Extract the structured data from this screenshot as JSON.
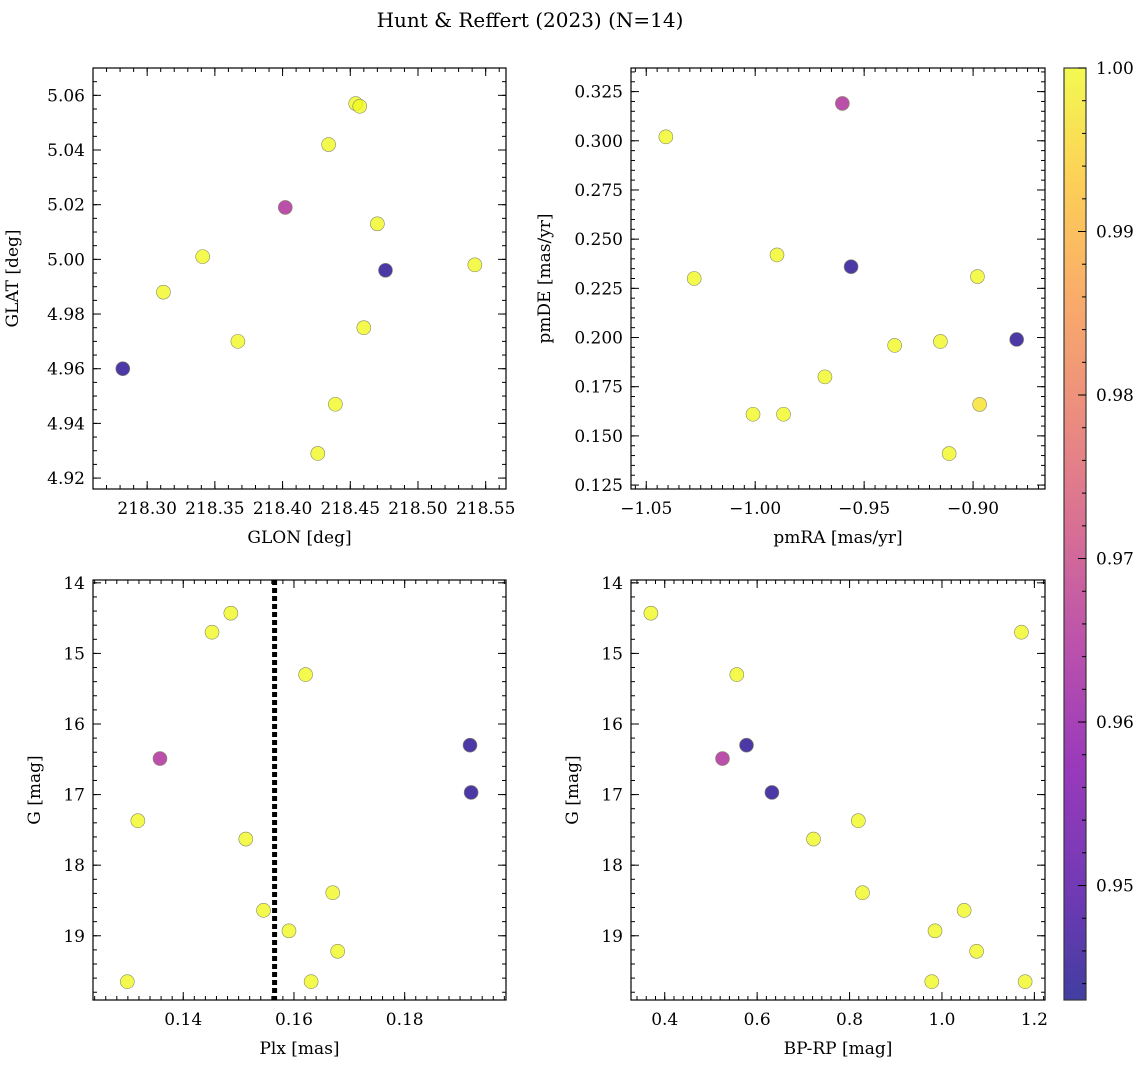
{
  "figure": {
    "suptitle": "Hunt & Reffert (2023) (N=14)"
  },
  "colorbar": {
    "colormap": "plasma",
    "range": [
      0.943,
      1.0
    ],
    "ticks": [
      0.95,
      0.96,
      0.97,
      0.98,
      0.99,
      1.0
    ],
    "tick_labels": [
      "0.95",
      "0.96",
      "0.97",
      "0.98",
      "0.99",
      "1.00"
    ]
  },
  "chart_data": [
    {
      "id": "glon-glat",
      "type": "scatter",
      "xlabel": "GLON [deg]",
      "ylabel": "GLAT [deg]",
      "xlim": [
        218.26,
        218.565
      ],
      "ylim": [
        4.916,
        5.07
      ],
      "xticks": [
        218.3,
        218.35,
        218.4,
        218.45,
        218.5,
        218.55
      ],
      "xtick_labels": [
        "218.30",
        "218.35",
        "218.40",
        "218.45",
        "218.50",
        "218.55"
      ],
      "yticks": [
        4.92,
        4.94,
        4.96,
        4.98,
        5.0,
        5.02,
        5.04,
        5.06
      ],
      "ytick_labels": [
        "4.92",
        "4.94",
        "4.96",
        "4.98",
        "5.00",
        "5.02",
        "5.04",
        "5.06"
      ],
      "points": [
        {
          "x": 218.282,
          "y": 4.96,
          "c": 0.945
        },
        {
          "x": 218.312,
          "y": 4.988,
          "c": 1.0
        },
        {
          "x": 218.341,
          "y": 5.001,
          "c": 1.0
        },
        {
          "x": 218.367,
          "y": 4.97,
          "c": 1.0
        },
        {
          "x": 218.402,
          "y": 5.019,
          "c": 0.965
        },
        {
          "x": 218.426,
          "y": 4.929,
          "c": 1.0
        },
        {
          "x": 218.434,
          "y": 5.042,
          "c": 1.0
        },
        {
          "x": 218.439,
          "y": 4.947,
          "c": 1.0
        },
        {
          "x": 218.454,
          "y": 5.057,
          "c": 1.0
        },
        {
          "x": 218.457,
          "y": 5.056,
          "c": 1.0
        },
        {
          "x": 218.46,
          "y": 4.975,
          "c": 1.0
        },
        {
          "x": 218.47,
          "y": 5.013,
          "c": 1.0
        },
        {
          "x": 218.476,
          "y": 4.996,
          "c": 0.945
        },
        {
          "x": 218.542,
          "y": 4.998,
          "c": 1.0
        }
      ]
    },
    {
      "id": "pmra-pmde",
      "type": "scatter",
      "xlabel": "pmRA [mas/yr]",
      "ylabel": "pmDE [mas/yr]",
      "xlim": [
        -1.057,
        -0.867
      ],
      "ylim": [
        0.123,
        0.337
      ],
      "xticks": [
        -1.05,
        -1.0,
        -0.95,
        -0.9
      ],
      "xtick_labels": [
        "−1.05",
        "−1.00",
        "−0.95",
        "−0.90"
      ],
      "yticks": [
        0.125,
        0.15,
        0.175,
        0.2,
        0.225,
        0.25,
        0.275,
        0.3,
        0.325
      ],
      "ytick_labels": [
        "0.125",
        "0.150",
        "0.175",
        "0.200",
        "0.225",
        "0.250",
        "0.275",
        "0.300",
        "0.325"
      ],
      "points": [
        {
          "x": -1.041,
          "y": 0.302,
          "c": 1.0
        },
        {
          "x": -1.028,
          "y": 0.23,
          "c": 1.0
        },
        {
          "x": -1.001,
          "y": 0.161,
          "c": 1.0
        },
        {
          "x": -0.99,
          "y": 0.242,
          "c": 1.0
        },
        {
          "x": -0.987,
          "y": 0.161,
          "c": 1.0
        },
        {
          "x": -0.968,
          "y": 0.18,
          "c": 1.0
        },
        {
          "x": -0.96,
          "y": 0.319,
          "c": 0.965
        },
        {
          "x": -0.956,
          "y": 0.236,
          "c": 0.945
        },
        {
          "x": -0.936,
          "y": 0.196,
          "c": 1.0
        },
        {
          "x": -0.915,
          "y": 0.198,
          "c": 1.0
        },
        {
          "x": -0.911,
          "y": 0.141,
          "c": 1.0
        },
        {
          "x": -0.898,
          "y": 0.231,
          "c": 1.0
        },
        {
          "x": -0.897,
          "y": 0.166,
          "c": 0.997
        },
        {
          "x": -0.88,
          "y": 0.199,
          "c": 0.945
        }
      ]
    },
    {
      "id": "plx-g",
      "type": "scatter",
      "xlabel": "Plx [mas]",
      "ylabel": "G [mag]",
      "xlim": [
        0.1237,
        0.1983
      ],
      "ylim": [
        19.91,
        13.96
      ],
      "y_inverted": true,
      "vline": 0.1565,
      "xticks": [
        0.14,
        0.16,
        0.18
      ],
      "xtick_labels": [
        "0.14",
        "0.16",
        "0.18"
      ],
      "yticks": [
        14,
        15,
        16,
        17,
        18,
        19
      ],
      "ytick_labels": [
        "14",
        "15",
        "16",
        "17",
        "18",
        "19"
      ],
      "points": [
        {
          "x": 0.1299,
          "y": 19.65,
          "c": 1.0
        },
        {
          "x": 0.1318,
          "y": 17.37,
          "c": 1.0
        },
        {
          "x": 0.1358,
          "y": 16.49,
          "c": 0.965
        },
        {
          "x": 0.1452,
          "y": 14.7,
          "c": 1.0
        },
        {
          "x": 0.1486,
          "y": 14.43,
          "c": 1.0
        },
        {
          "x": 0.1513,
          "y": 17.63,
          "c": 1.0
        },
        {
          "x": 0.1545,
          "y": 18.64,
          "c": 1.0
        },
        {
          "x": 0.1591,
          "y": 18.93,
          "c": 1.0
        },
        {
          "x": 0.1621,
          "y": 15.3,
          "c": 1.0
        },
        {
          "x": 0.1631,
          "y": 19.65,
          "c": 1.0
        },
        {
          "x": 0.167,
          "y": 18.39,
          "c": 1.0
        },
        {
          "x": 0.1679,
          "y": 19.22,
          "c": 1.0
        },
        {
          "x": 0.1918,
          "y": 16.3,
          "c": 0.945
        },
        {
          "x": 0.192,
          "y": 16.97,
          "c": 0.945
        }
      ]
    },
    {
      "id": "bprp-g",
      "type": "scatter",
      "xlabel": "BP-RP [mag]",
      "ylabel": "G [mag]",
      "xlim": [
        0.327,
        1.223
      ],
      "ylim": [
        19.91,
        13.96
      ],
      "y_inverted": true,
      "xticks": [
        0.4,
        0.6,
        0.8,
        1.0,
        1.2
      ],
      "xtick_labels": [
        "0.4",
        "0.6",
        "0.8",
        "1.0",
        "1.2"
      ],
      "yticks": [
        14,
        15,
        16,
        17,
        18,
        19
      ],
      "ytick_labels": [
        "14",
        "15",
        "16",
        "17",
        "18",
        "19"
      ],
      "points": [
        {
          "x": 0.37,
          "y": 14.43,
          "c": 1.0
        },
        {
          "x": 0.525,
          "y": 16.49,
          "c": 0.965
        },
        {
          "x": 0.556,
          "y": 15.3,
          "c": 1.0
        },
        {
          "x": 0.577,
          "y": 16.3,
          "c": 0.945
        },
        {
          "x": 0.632,
          "y": 16.97,
          "c": 0.945
        },
        {
          "x": 0.722,
          "y": 17.63,
          "c": 1.0
        },
        {
          "x": 0.819,
          "y": 17.37,
          "c": 1.0
        },
        {
          "x": 0.828,
          "y": 18.39,
          "c": 1.0
        },
        {
          "x": 0.978,
          "y": 19.65,
          "c": 1.0
        },
        {
          "x": 0.985,
          "y": 18.93,
          "c": 1.0
        },
        {
          "x": 1.048,
          "y": 18.64,
          "c": 1.0
        },
        {
          "x": 1.075,
          "y": 19.22,
          "c": 1.0
        },
        {
          "x": 1.172,
          "y": 14.7,
          "c": 1.0
        },
        {
          "x": 1.18,
          "y": 19.65,
          "c": 1.0
        }
      ]
    }
  ]
}
